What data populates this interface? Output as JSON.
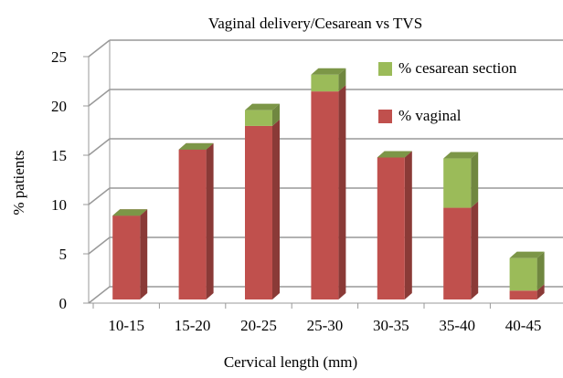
{
  "chart_data": {
    "type": "bar3d_stacked",
    "title": "Vaginal delivery/Cesarean  vs  TVS",
    "x_label": "Cervical length (mm)",
    "y_label": "% patients",
    "categories": [
      "10-15",
      "15-20",
      "20-25",
      "25-30",
      "30-35",
      "35-40",
      "40-45"
    ],
    "series": [
      {
        "name": "% vaginal",
        "color": "#c0504d",
        "values": [
          8.5,
          15.2,
          17.6,
          21.1,
          14.4,
          9.3,
          0.9
        ]
      },
      {
        "name": "% cesarean section",
        "color": "#9bbb59",
        "values": [
          0,
          0,
          1.6,
          1.7,
          0,
          5.0,
          3.3
        ]
      }
    ],
    "ylim": [
      0,
      25
    ],
    "yticks": [
      0,
      5,
      10,
      15,
      20,
      25
    ],
    "grid": true
  }
}
